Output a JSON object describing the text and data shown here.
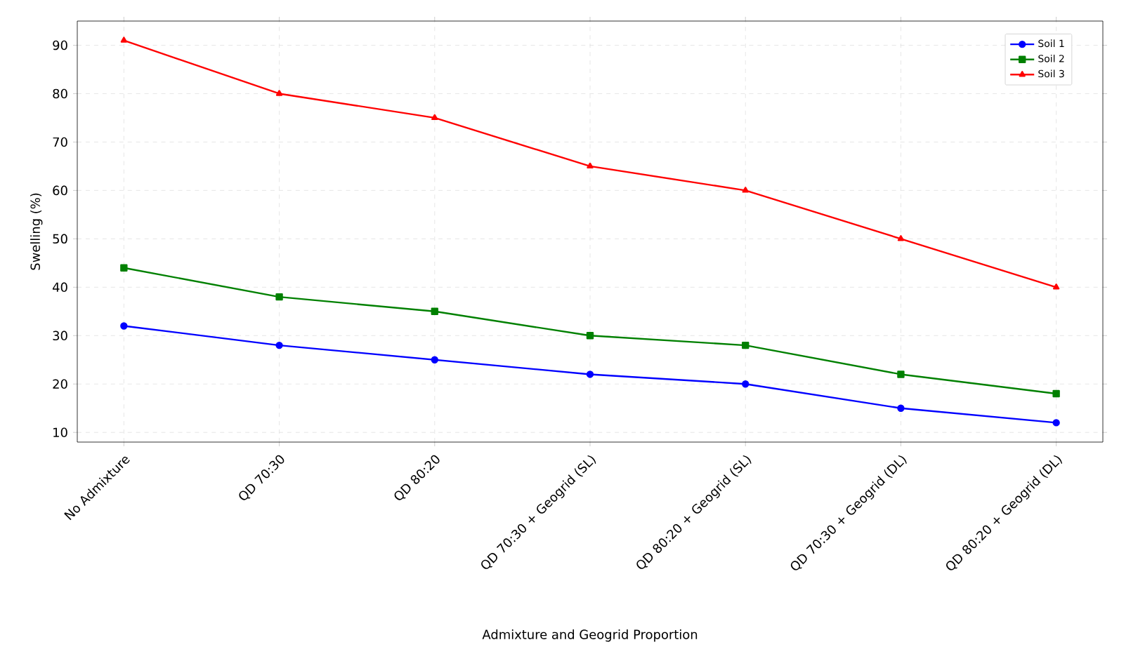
{
  "chart_data": {
    "type": "line",
    "xlabel": "Admixture and Geogrid Proportion",
    "ylabel": "Swelling (%)",
    "categories": [
      "No Admixture",
      "QD 70:30",
      "QD 80:20",
      "QD 70:30 + Geogrid (SL)",
      "QD 80:20 + Geogrid (SL)",
      "QD 70:30 + Geogrid (DL)",
      "QD 80:20 + Geogrid (DL)"
    ],
    "series": [
      {
        "name": "Soil 1",
        "color": "#0000ff",
        "marker": "circle",
        "values": [
          32,
          28,
          25,
          22,
          20,
          15,
          12
        ]
      },
      {
        "name": "Soil 2",
        "color": "#008000",
        "marker": "square",
        "values": [
          44,
          38,
          35,
          30,
          28,
          22,
          18
        ]
      },
      {
        "name": "Soil 3",
        "color": "#ff0000",
        "marker": "triangle",
        "values": [
          91,
          80,
          75,
          65,
          60,
          50,
          40
        ]
      }
    ],
    "ylim": [
      8,
      95
    ],
    "yticks": [
      10,
      20,
      30,
      40,
      50,
      60,
      70,
      80,
      90
    ],
    "grid": true,
    "legend": "top right",
    "line_style": "solid"
  }
}
